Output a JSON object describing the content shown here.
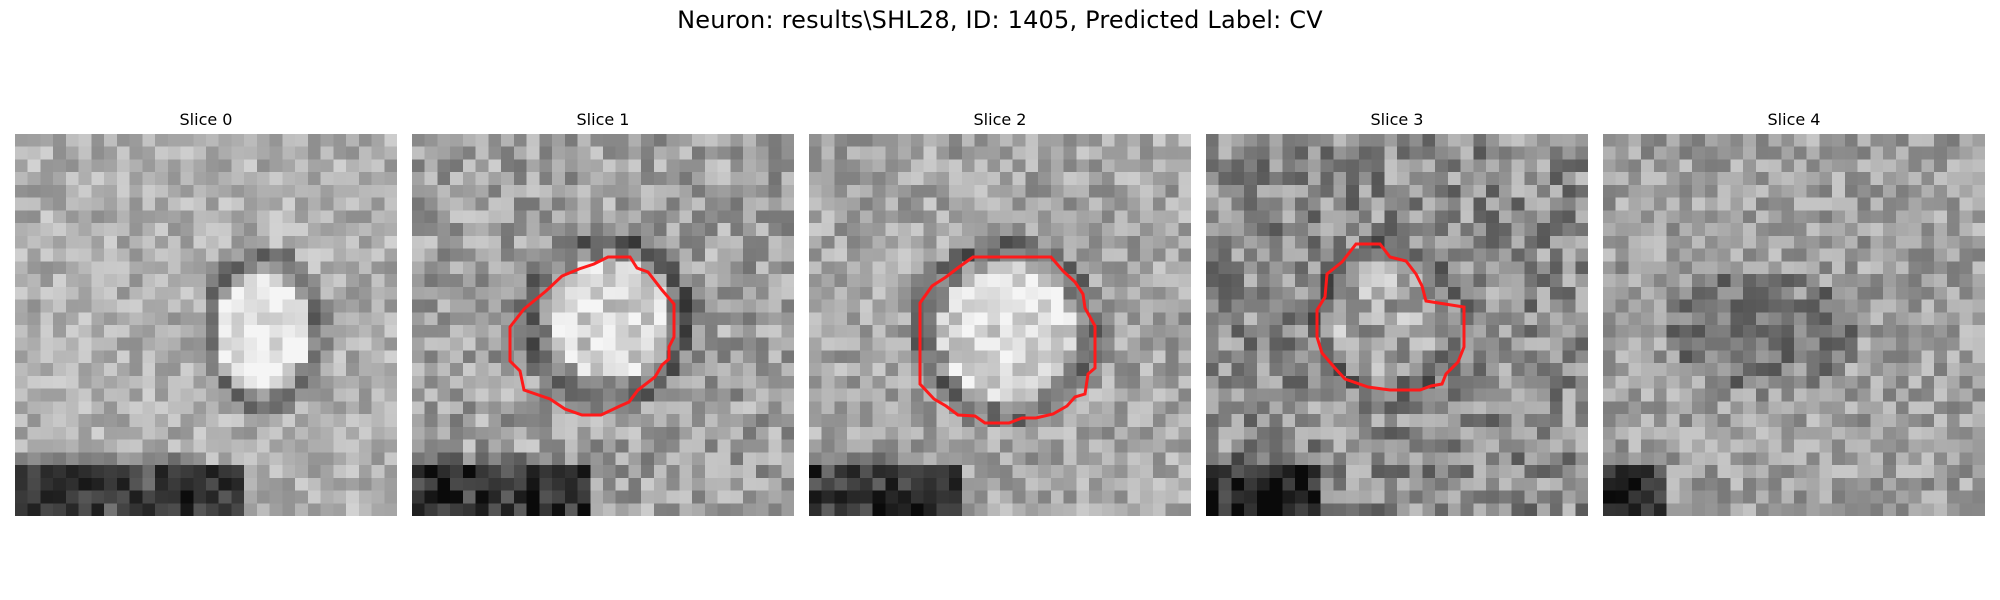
{
  "figure": {
    "title": "Neuron: results\\SHL28, ID: 1405, Predicted Label: CV"
  },
  "colors": {
    "contour": "#ff1a1a",
    "background": "#ffffff"
  },
  "slices": [
    {
      "title": "Slice 0",
      "has_contour": false
    },
    {
      "title": "Slice 1",
      "has_contour": true
    },
    {
      "title": "Slice 2",
      "has_contour": true
    },
    {
      "title": "Slice 3",
      "has_contour": true
    },
    {
      "title": "Slice 4",
      "has_contour": false
    }
  ]
}
